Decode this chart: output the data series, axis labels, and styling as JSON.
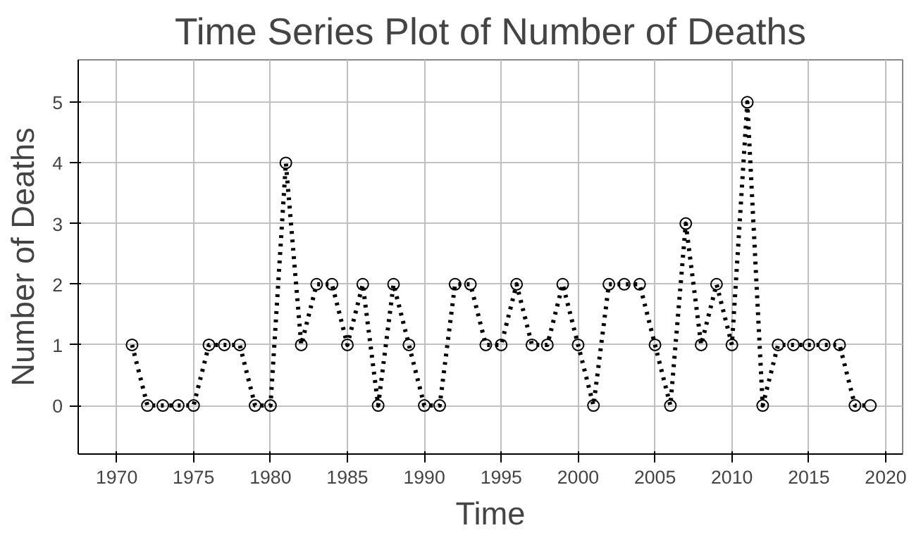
{
  "chart_data": {
    "type": "line",
    "title": "Time Series Plot of Number of Deaths",
    "xlabel": "Time",
    "ylabel": "Number of Deaths",
    "x": [
      1971,
      1972,
      1973,
      1974,
      1975,
      1976,
      1977,
      1978,
      1979,
      1980,
      1981,
      1982,
      1983,
      1984,
      1985,
      1986,
      1987,
      1988,
      1989,
      1990,
      1991,
      1992,
      1993,
      1994,
      1995,
      1996,
      1997,
      1998,
      1999,
      2000,
      2001,
      2002,
      2003,
      2004,
      2005,
      2006,
      2007,
      2008,
      2009,
      2010,
      2011,
      2012,
      2013,
      2014,
      2015,
      2016,
      2017,
      2018,
      2019
    ],
    "series": [
      {
        "color": "#000000",
        "values": [
          1,
          0,
          0,
          0,
          0,
          1,
          1,
          1,
          0,
          0,
          4,
          1,
          2,
          2,
          1,
          2,
          0,
          2,
          1,
          0,
          0,
          2,
          2,
          1,
          1,
          2,
          1,
          1,
          2,
          1,
          0,
          2,
          2,
          2,
          1,
          0,
          3,
          1,
          2,
          1,
          5,
          0,
          1,
          1,
          1,
          1,
          1,
          0,
          0
        ]
      }
    ],
    "xlim": [
      1967.5,
      2021.1
    ],
    "xticks": [
      1970,
      1975,
      1980,
      1985,
      1990,
      1995,
      2000,
      2005,
      2010,
      2015,
      2020
    ],
    "ylim": [
      -0.8,
      5.7
    ],
    "yticks": [
      0,
      1,
      2,
      3,
      4,
      5
    ],
    "grid": true,
    "marker": "circle",
    "line_style": "dotted"
  }
}
